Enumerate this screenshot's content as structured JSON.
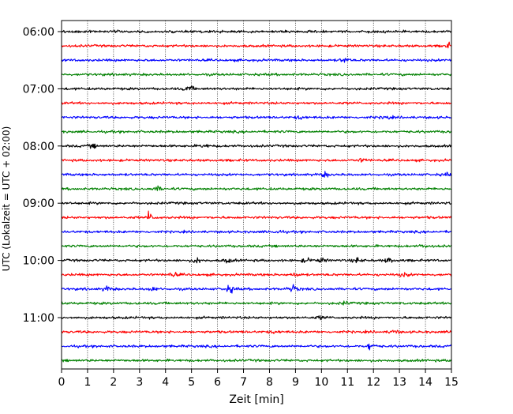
{
  "chart_data": {
    "type": "line",
    "title": "",
    "xlabel": "Zeit  [min]",
    "ylabel": "UTC (Lokalzeit = UTC + 02:00)",
    "xlim": [
      0,
      15
    ],
    "x_ticks": [
      0,
      1,
      2,
      3,
      4,
      5,
      6,
      7,
      8,
      9,
      10,
      11,
      12,
      13,
      14,
      15
    ],
    "x_grid": true,
    "y_grid": false,
    "y_ticks": [
      {
        "label": "06:00",
        "trace": 0
      },
      {
        "label": "07:00",
        "trace": 4
      },
      {
        "label": "08:00",
        "trace": 8
      },
      {
        "label": "09:00",
        "trace": 12
      },
      {
        "label": "10:00",
        "trace": 16
      },
      {
        "label": "11:00",
        "trace": 20
      }
    ],
    "trace_interval_min": 15,
    "start_time": "06:00",
    "color_cycle": [
      "#000000",
      "#ff0000",
      "#0000ff",
      "#008000"
    ],
    "series": [
      {
        "start": "06:00",
        "events": []
      },
      {
        "start": "06:15",
        "events": [
          {
            "t": 14.9,
            "amp": 1.0
          }
        ]
      },
      {
        "start": "06:30",
        "events": [
          {
            "t": 10.9,
            "amp": 1.0
          }
        ]
      },
      {
        "start": "06:45",
        "events": []
      },
      {
        "start": "07:00",
        "events": [
          {
            "t": 4.9,
            "amp": 1.3
          }
        ]
      },
      {
        "start": "07:15",
        "events": []
      },
      {
        "start": "07:30",
        "events": [
          {
            "t": 9.2,
            "amp": 0.7
          },
          {
            "t": 12.5,
            "amp": 0.6
          }
        ]
      },
      {
        "start": "07:45",
        "events": []
      },
      {
        "start": "08:00",
        "events": [
          {
            "t": 1.2,
            "amp": 0.7
          },
          {
            "t": 5.5,
            "amp": 0.6
          }
        ]
      },
      {
        "start": "08:15",
        "events": [
          {
            "t": 11.6,
            "amp": 0.8
          }
        ]
      },
      {
        "start": "08:30",
        "events": [
          {
            "t": 10.1,
            "amp": 1.1
          },
          {
            "t": 14.8,
            "amp": 0.6
          }
        ]
      },
      {
        "start": "08:45",
        "events": [
          {
            "t": 3.7,
            "amp": 0.9
          }
        ]
      },
      {
        "start": "09:00",
        "events": []
      },
      {
        "start": "09:15",
        "events": [
          {
            "t": 3.3,
            "amp": 3.0
          }
        ]
      },
      {
        "start": "09:30",
        "events": [
          {
            "t": 8.3,
            "amp": 0.7
          }
        ]
      },
      {
        "start": "09:45",
        "events": [
          {
            "t": 14.0,
            "amp": 0.6
          }
        ]
      },
      {
        "start": "10:00",
        "events": [
          {
            "t": 5.2,
            "amp": 1.2
          },
          {
            "t": 6.4,
            "amp": 0.9
          },
          {
            "t": 9.4,
            "amp": 0.8
          },
          {
            "t": 10.0,
            "amp": 0.9
          },
          {
            "t": 11.4,
            "amp": 1.1
          },
          {
            "t": 12.6,
            "amp": 1.0
          }
        ]
      },
      {
        "start": "10:15",
        "events": [
          {
            "t": 4.3,
            "amp": 0.8
          },
          {
            "t": 9.0,
            "amp": 0.7
          },
          {
            "t": 13.2,
            "amp": 0.7
          }
        ]
      },
      {
        "start": "10:30",
        "events": [
          {
            "t": 1.8,
            "amp": 1.1
          },
          {
            "t": 6.5,
            "amp": 1.6
          },
          {
            "t": 8.9,
            "amp": 1.5
          },
          {
            "t": 3.5,
            "amp": 0.8
          }
        ]
      },
      {
        "start": "10:45",
        "events": [
          {
            "t": 10.9,
            "amp": 0.6
          }
        ]
      },
      {
        "start": "11:00",
        "events": [
          {
            "t": 10.0,
            "amp": 0.6
          }
        ]
      },
      {
        "start": "11:15",
        "events": [
          {
            "t": 12.8,
            "amp": 0.7
          },
          {
            "t": 8.2,
            "amp": 0.5
          }
        ]
      },
      {
        "start": "11:30",
        "events": [
          {
            "t": 11.8,
            "amp": 2.1
          }
        ]
      },
      {
        "start": "11:45",
        "events": []
      }
    ]
  }
}
